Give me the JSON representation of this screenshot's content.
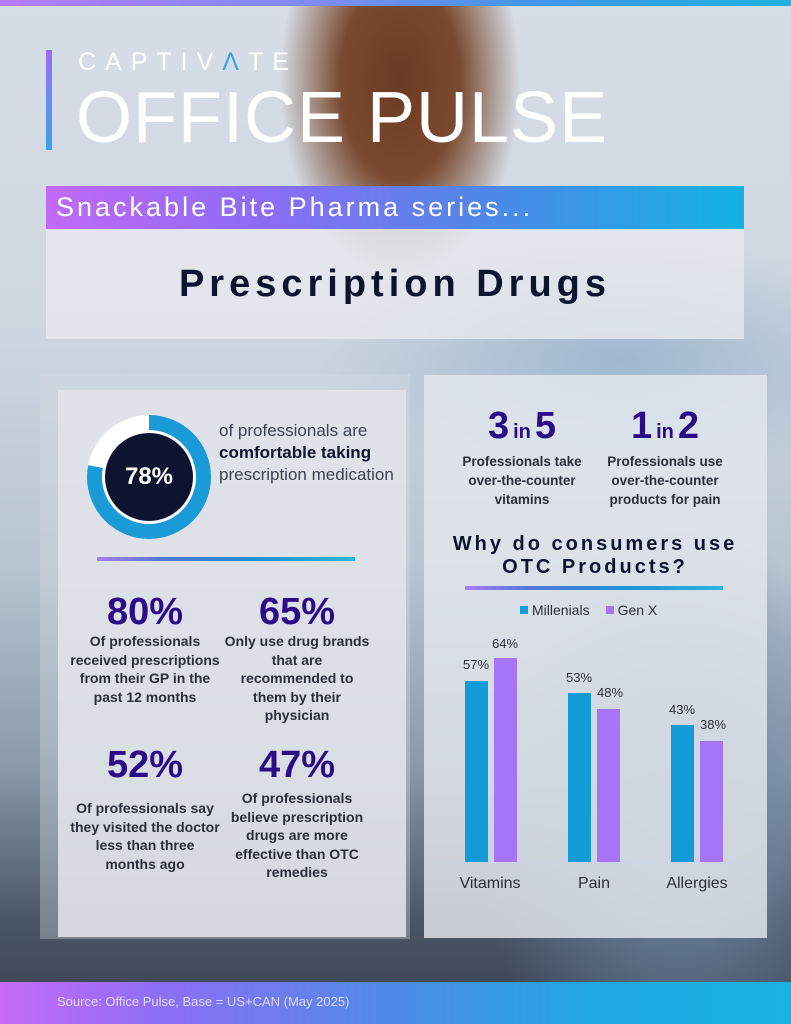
{
  "header": {
    "brand": "CAPTIVATE",
    "product": "OFFICE PULSE",
    "series": "Snackable Bite Pharma series...",
    "title": "Prescription Drugs"
  },
  "donut_stat": {
    "value": "78%",
    "percent": 78,
    "text_pre": "of professionals are ",
    "text_bold": "comfortable taking",
    "text_post": " prescription medication",
    "ring_color": "#1a9ad6"
  },
  "left_stats": [
    {
      "value": "80%",
      "desc": "Of professionals received prescriptions from their GP in the past 12 months"
    },
    {
      "value": "65%",
      "desc": "Only use drug brands that are recommended to them by their physician"
    },
    {
      "value": "52%",
      "desc": "Of professionals say they visited the doctor less than three months ago"
    },
    {
      "value": "47%",
      "desc": "Of professionals believe prescription drugs are more effective than OTC remedies"
    }
  ],
  "ratios": [
    {
      "num": "3",
      "in": "in",
      "den": "5",
      "desc": "Professionals take over-the-counter vitamins"
    },
    {
      "num": "1",
      "in": "in",
      "den": "2",
      "desc": "Professionals use over-the-counter products for pain"
    }
  ],
  "chart_title": "Why do consumers use OTC Products?",
  "chart_data": {
    "type": "bar",
    "title": "Why do consumers use OTC Products?",
    "categories": [
      "Vitamins",
      "Pain",
      "Allergies"
    ],
    "series": [
      {
        "name": "Millenials",
        "color": "#139bd8",
        "values": [
          57,
          53,
          43
        ],
        "labels": [
          "57%",
          "53%",
          "43%"
        ]
      },
      {
        "name": "Gen X",
        "color": "#a574f7",
        "values": [
          64,
          48,
          38
        ],
        "labels": [
          "64%",
          "48%",
          "38%"
        ]
      }
    ],
    "xlabel": "",
    "ylabel": "",
    "ylim": [
      0,
      70
    ],
    "grid": false,
    "legend_position": "top"
  },
  "footer": {
    "source": "Source: Office Pulse, Base = US+CAN (May 2025)"
  },
  "colors": {
    "navy": "#0c1430",
    "purple_stat": "#2a0c86",
    "cyan": "#139bd8",
    "violet": "#a574f7"
  }
}
